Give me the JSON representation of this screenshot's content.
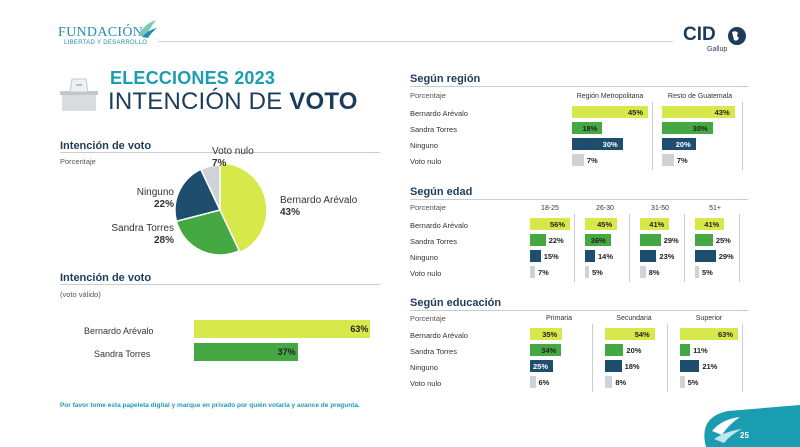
{
  "colors": {
    "lime": "#d7e84a",
    "green": "#45a843",
    "navy": "#1d4e6e",
    "grey": "#cfd3d6",
    "teal": "#1a9db0",
    "dark": "#1d3c5c"
  },
  "logos": {
    "fundacion_title": "FUNDACIÓN",
    "fundacion_sub": "LIBERTAD Y DESARROLLO",
    "cid": "CID",
    "gallup": "Gallup"
  },
  "title": {
    "line1": "ELECCIONES 2023",
    "line2_a": "INTENCIÓN DE ",
    "line2_b": "VOTO"
  },
  "footer": {
    "note": "Por favor tome esta papeleta digital y marque en privado por quién votaría y avance de pregunta.",
    "page": "25"
  },
  "chart_data": [
    {
      "type": "pie",
      "title": "Intención de voto",
      "subtitle": "Porcentaje",
      "slices": [
        {
          "name": "Bernardo Arévalo",
          "value": 43,
          "label": "43%"
        },
        {
          "name": "Sandra Torres",
          "value": 28,
          "label": "28%"
        },
        {
          "name": "Ninguno",
          "value": 22,
          "label": "22%"
        },
        {
          "name": "Voto nulo",
          "value": 7,
          "label": "7%"
        }
      ]
    },
    {
      "type": "bar",
      "orientation": "horizontal",
      "title": "Intención de voto",
      "subtitle": "(voto válido)",
      "categories": [
        "Bernardo Arévalo",
        "Sandra Torres"
      ],
      "values": [
        63,
        37
      ],
      "labels": [
        "63%",
        "37%"
      ]
    },
    {
      "type": "bar",
      "orientation": "horizontal",
      "title": "Según región",
      "subtitle": "Porcentaje",
      "categories": [
        "Bernardo Arévalo",
        "Sandra Torres",
        "Ninguno",
        "Voto nulo"
      ],
      "groups": [
        {
          "name": "Región Metropolitana",
          "values": [
            45,
            18,
            30,
            7
          ],
          "labels": [
            "45%",
            "18%",
            "30%",
            "7%"
          ]
        },
        {
          "name": "Resto de Guatemala",
          "values": [
            43,
            30,
            20,
            7
          ],
          "labels": [
            "43%",
            "30%",
            "20%",
            "7%"
          ]
        }
      ]
    },
    {
      "type": "bar",
      "orientation": "horizontal",
      "title": "Según edad",
      "subtitle": "Porcentaje",
      "categories": [
        "Bernardo Arévalo",
        "Sandra Torres",
        "Ninguno",
        "Voto nulo"
      ],
      "groups": [
        {
          "name": "18-25",
          "values": [
            56,
            22,
            15,
            7
          ],
          "labels": [
            "56%",
            "22%",
            "15%",
            "7%"
          ]
        },
        {
          "name": "26-30",
          "values": [
            45,
            36,
            14,
            5
          ],
          "labels": [
            "45%",
            "36%",
            "14%",
            "5%"
          ]
        },
        {
          "name": "31-50",
          "values": [
            41,
            29,
            23,
            8
          ],
          "labels": [
            "41%",
            "29%",
            "23%",
            "8%"
          ]
        },
        {
          "name": "51+",
          "values": [
            41,
            25,
            29,
            5
          ],
          "labels": [
            "41%",
            "25%",
            "29%",
            "5%"
          ]
        }
      ]
    },
    {
      "type": "bar",
      "orientation": "horizontal",
      "title": "Según educación",
      "subtitle": "Porcentaje",
      "categories": [
        "Bernardo Arévalo",
        "Sandra Torres",
        "Ninguno",
        "Voto nulo"
      ],
      "groups": [
        {
          "name": "Primaria",
          "values": [
            35,
            34,
            25,
            6
          ],
          "labels": [
            "35%",
            "34%",
            "25%",
            "6%"
          ]
        },
        {
          "name": "Secundaria",
          "values": [
            54,
            20,
            18,
            8
          ],
          "labels": [
            "54%",
            "20%",
            "18%",
            "8%"
          ]
        },
        {
          "name": "Superior",
          "values": [
            63,
            11,
            21,
            5
          ],
          "labels": [
            "63%",
            "11%",
            "21%",
            "5%"
          ]
        }
      ]
    }
  ]
}
